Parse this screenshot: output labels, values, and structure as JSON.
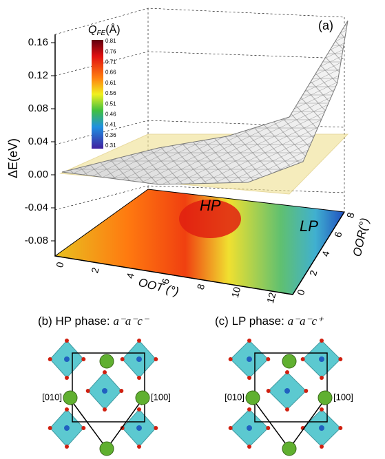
{
  "panel_a": {
    "label": "(a)",
    "z_axis": {
      "label": "ΔE(eV)",
      "ticks": [
        "0.16",
        "0.12",
        "0.08",
        "0.04",
        "0.00",
        "-0.04",
        "-0.08"
      ]
    },
    "x_axis": {
      "label": "OOT (°)",
      "ticks": [
        "0",
        "2",
        "4",
        "6",
        "8",
        "10",
        "12"
      ]
    },
    "y_axis": {
      "label": "OOR(°)",
      "ticks": [
        "0",
        "2",
        "4",
        "6",
        "8"
      ]
    },
    "colorbar": {
      "title": "Q",
      "title_sub": "FE",
      "title_unit": "(Å)",
      "ticks": [
        "0.81",
        "0.76",
        "0.71",
        "0.66",
        "0.61",
        "0.56",
        "0.51",
        "0.46",
        "0.41",
        "0.36",
        "0.31"
      ]
    },
    "annotations": [
      "HP",
      "LP"
    ]
  },
  "panel_b": {
    "label": "(b)",
    "phase": "HP phase:",
    "tilt": "a⁻a⁻c⁻",
    "directions": [
      "[010]",
      "[100]"
    ]
  },
  "panel_c": {
    "label": "(c)",
    "phase": "LP phase:",
    "tilt": "a⁻a⁻c⁺",
    "directions": [
      "[010]",
      "[100]"
    ]
  }
}
